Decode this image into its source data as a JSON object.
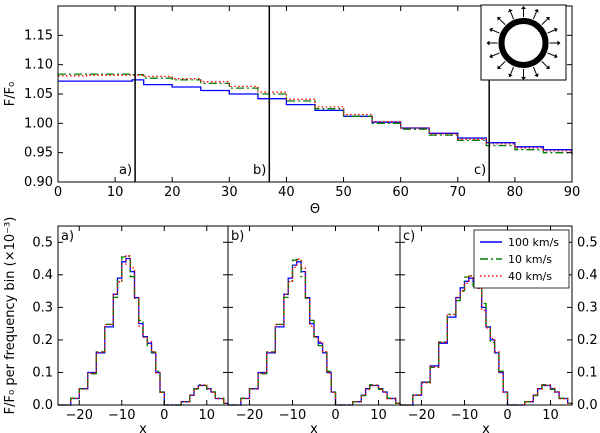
{
  "chart_data": [
    {
      "type": "line",
      "panel": "top",
      "xlabel": "Θ",
      "ylabel": "F/F₀",
      "xlim": [
        0,
        90
      ],
      "ylim": [
        0.9,
        1.2
      ],
      "xticks": [
        "0",
        "10",
        "20",
        "30",
        "40",
        "50",
        "60",
        "70",
        "80",
        "90"
      ],
      "yticks": [
        "0.90",
        "0.95",
        "1.00",
        "1.05",
        "1.10",
        "1.15"
      ],
      "vertical_markers": [
        {
          "x": 13.5,
          "label": "a)"
        },
        {
          "x": 37.0,
          "label": "b)"
        },
        {
          "x": 75.5,
          "label": "c)"
        }
      ],
      "series": [
        {
          "color": "#0000ff",
          "style": "solid",
          "x": [
            0,
            5,
            10,
            13,
            15,
            20,
            25,
            30,
            35,
            40,
            45,
            50,
            55,
            60,
            65,
            70,
            75,
            80,
            85,
            90
          ],
          "y": [
            1.072,
            1.072,
            1.072,
            1.074,
            1.066,
            1.062,
            1.056,
            1.05,
            1.042,
            1.032,
            1.022,
            1.012,
            1.002,
            0.992,
            0.983,
            0.975,
            0.967,
            0.96,
            0.955,
            0.95
          ]
        },
        {
          "color": "#007f00",
          "style": "dashdot",
          "x": [
            0,
            5,
            10,
            13,
            15,
            20,
            25,
            30,
            35,
            40,
            45,
            50,
            55,
            60,
            65,
            70,
            75,
            80,
            85,
            90
          ],
          "y": [
            1.084,
            1.084,
            1.084,
            1.083,
            1.077,
            1.074,
            1.068,
            1.06,
            1.05,
            1.038,
            1.025,
            1.012,
            1.0,
            0.99,
            0.98,
            0.971,
            0.962,
            0.955,
            0.95,
            0.946
          ]
        },
        {
          "color": "#ff0000",
          "style": "dotted",
          "x": [
            0,
            5,
            10,
            13,
            15,
            20,
            25,
            30,
            35,
            40,
            45,
            50,
            55,
            60,
            65,
            70,
            75,
            80,
            85,
            90
          ],
          "y": [
            1.081,
            1.082,
            1.082,
            1.082,
            1.08,
            1.076,
            1.071,
            1.063,
            1.053,
            1.041,
            1.028,
            1.015,
            1.003,
            0.992,
            0.982,
            0.973,
            0.965,
            0.958,
            0.953,
            0.948
          ]
        }
      ]
    },
    {
      "type": "line",
      "panel": "bottom",
      "ylabel": "F/F₀ per frequency bin (×10⁻³)",
      "subplots": [
        {
          "label": "a)",
          "xlabel": "x",
          "xlim": [
            -25,
            15
          ],
          "ylim": [
            0,
            0.55
          ],
          "xticks": [
            "−20",
            "−10",
            "0",
            "10"
          ],
          "yticks": [
            "0.0",
            "0.1",
            "0.2",
            "0.3",
            "0.4",
            "0.5"
          ],
          "x": [
            -25,
            -22,
            -20,
            -18,
            -16,
            -14,
            -12,
            -11,
            -10,
            -9,
            -8,
            -7,
            -6,
            -5,
            -4,
            -3,
            -2,
            -1,
            0,
            2,
            4,
            6,
            7,
            8,
            9,
            10,
            11,
            12,
            14,
            15
          ],
          "y": [
            0.0,
            0.02,
            0.05,
            0.1,
            0.16,
            0.24,
            0.34,
            0.39,
            0.44,
            0.45,
            0.41,
            0.33,
            0.25,
            0.21,
            0.19,
            0.16,
            0.1,
            0.04,
            0.0,
            0.0,
            0.01,
            0.03,
            0.05,
            0.06,
            0.06,
            0.05,
            0.04,
            0.02,
            0.005,
            0.0
          ]
        },
        {
          "label": "b)",
          "xlabel": "x",
          "xlim": [
            -25,
            15
          ],
          "ylim": [
            0,
            0.55
          ],
          "xticks": [
            "−20",
            "−10",
            "0",
            "10"
          ],
          "yticks": [],
          "x": [
            -25,
            -22,
            -20,
            -18,
            -16,
            -14,
            -12,
            -11,
            -10,
            -9,
            -8,
            -7,
            -6,
            -5,
            -4,
            -3,
            -2,
            -1,
            0,
            2,
            4,
            6,
            7,
            8,
            9,
            10,
            11,
            12,
            14,
            15
          ],
          "y": [
            0.0,
            0.02,
            0.05,
            0.1,
            0.16,
            0.24,
            0.34,
            0.39,
            0.43,
            0.44,
            0.41,
            0.33,
            0.25,
            0.21,
            0.19,
            0.16,
            0.1,
            0.04,
            0.0,
            0.0,
            0.01,
            0.03,
            0.05,
            0.06,
            0.06,
            0.05,
            0.04,
            0.02,
            0.005,
            0.0
          ]
        },
        {
          "label": "c)",
          "xlabel": "x",
          "xlim": [
            -25,
            15
          ],
          "ylim": [
            0,
            0.55
          ],
          "xticks": [
            "−20",
            "−10",
            "0",
            "10"
          ],
          "yticks_right": [
            "0.0",
            "0.1",
            "0.2",
            "0.3",
            "0.4",
            "0.5"
          ],
          "x": [
            -25,
            -22,
            -20,
            -18,
            -16,
            -14,
            -12,
            -11,
            -10,
            -9,
            -8,
            -7,
            -6,
            -5,
            -4,
            -3,
            -2,
            -1,
            0,
            2,
            4,
            6,
            7,
            8,
            9,
            10,
            11,
            12,
            14,
            15
          ],
          "y": [
            0.0,
            0.03,
            0.07,
            0.12,
            0.19,
            0.27,
            0.33,
            0.36,
            0.38,
            0.39,
            0.38,
            0.36,
            0.3,
            0.24,
            0.2,
            0.16,
            0.1,
            0.04,
            0.0,
            0.0,
            0.01,
            0.03,
            0.05,
            0.06,
            0.06,
            0.05,
            0.04,
            0.02,
            0.005,
            0.0
          ]
        }
      ],
      "legend": {
        "placement": "top-right",
        "entries": [
          {
            "label": "100 km/s",
            "color": "#0000ff",
            "style": "solid"
          },
          {
            "label": "10 km/s",
            "color": "#007f00",
            "style": "dashdot"
          },
          {
            "label": "40 km/s",
            "color": "#ff0000",
            "style": "dotted"
          }
        ]
      }
    }
  ]
}
